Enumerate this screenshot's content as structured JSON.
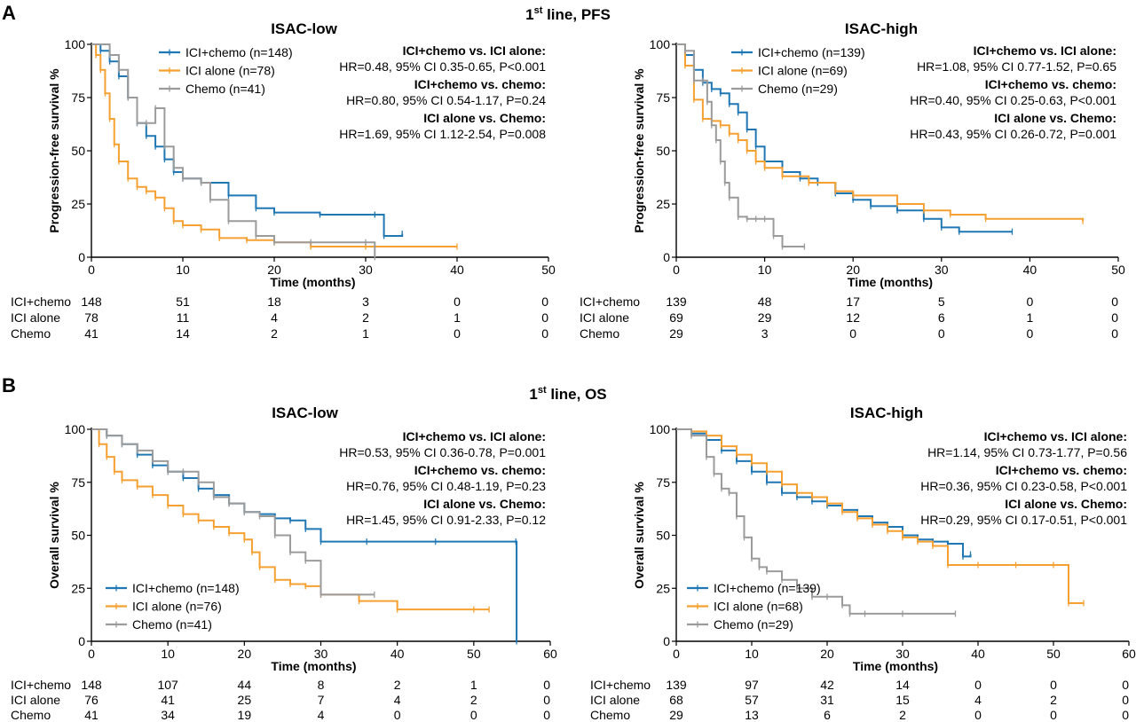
{
  "colors": {
    "ici_chemo": "#1f77b4",
    "ici_alone": "#f5a030",
    "chemo": "#9b9b9b",
    "axis": "#000000"
  },
  "figure": {
    "panel_a": {
      "letter": "A",
      "title_main": "1",
      "title_sup": "st",
      "title_rest": " line, PFS"
    },
    "panel_b": {
      "letter": "B",
      "title_main": "1",
      "title_sup": "st",
      "title_rest": " line, OS"
    }
  },
  "chart_data": [
    {
      "id": "pfs-low",
      "type": "line",
      "title": "ISAC-low",
      "xlabel": "Time (months)",
      "ylabel": "Progression-free survival %",
      "xlim": [
        0,
        50
      ],
      "ylim": [
        0,
        100
      ],
      "xticks": [
        0,
        10,
        20,
        30,
        40,
        50
      ],
      "yticks": [
        0,
        25,
        50,
        75,
        100
      ],
      "grid": false,
      "legend_position": "top-center",
      "legend": [
        "ICI+chemo (n=148)",
        "ICI alone (n=78)",
        "Chemo (n=41)"
      ],
      "stats": [
        {
          "label": "ICI+chemo vs. ICI alone",
          "text": "HR=0.48, 95% CI 0.35-0.65, P<0.001"
        },
        {
          "label": "ICI+chemo vs. chemo",
          "text": "HR=0.80, 95% CI 0.54-1.17, P=0.24"
        },
        {
          "label": "ICI alone vs. Chemo",
          "text": "HR=1.69, 95% CI 1.12-2.54, P=0.008"
        }
      ],
      "series": [
        {
          "name": "ICI+chemo",
          "color_key": "ici_chemo",
          "x": [
            0,
            1,
            2,
            3,
            4,
            5,
            6,
            7,
            8,
            9,
            10,
            12,
            15,
            18,
            20,
            25,
            31,
            32,
            34
          ],
          "y": [
            100,
            97,
            92,
            85,
            75,
            63,
            57,
            52,
            46,
            40,
            37,
            35,
            29,
            23,
            21,
            20,
            20,
            10,
            11
          ]
        },
        {
          "name": "ICI alone",
          "color_key": "ici_alone",
          "x": [
            0,
            0.5,
            1,
            1.5,
            2,
            2.5,
            3,
            4,
            5,
            6,
            7,
            8,
            9,
            10,
            12,
            14,
            17,
            20,
            24,
            30,
            40
          ],
          "y": [
            100,
            95,
            88,
            77,
            65,
            53,
            45,
            37,
            33,
            31,
            28,
            23,
            17,
            15,
            13,
            9,
            8,
            7,
            5,
            5,
            5
          ]
        },
        {
          "name": "Chemo",
          "color_key": "chemo",
          "x": [
            0,
            2,
            3,
            4,
            5,
            6,
            7,
            8,
            9,
            10,
            12,
            13,
            15,
            18,
            20,
            24,
            30,
            31
          ],
          "y": [
            100,
            95,
            88,
            75,
            63,
            63,
            70,
            52,
            42,
            37,
            35,
            27,
            17,
            10,
            7,
            7,
            7,
            0
          ]
        }
      ],
      "risk_table": {
        "rows": [
          {
            "label": "ICI+chemo",
            "values": [
              "148",
              "51",
              "18",
              "3",
              "0",
              "0"
            ]
          },
          {
            "label": "ICI alone",
            "values": [
              "78",
              "11",
              "4",
              "2",
              "1",
              "0"
            ]
          },
          {
            "label": "Chemo",
            "values": [
              "41",
              "14",
              "2",
              "1",
              "0",
              "0"
            ]
          }
        ]
      }
    },
    {
      "id": "pfs-high",
      "type": "line",
      "title": "ISAC-high",
      "xlabel": "Time (months)",
      "ylabel": "Progression-free survival %",
      "xlim": [
        0,
        50
      ],
      "ylim": [
        0,
        100
      ],
      "xticks": [
        0,
        10,
        20,
        30,
        40,
        50
      ],
      "yticks": [
        0,
        25,
        50,
        75,
        100
      ],
      "grid": false,
      "legend_position": "top-center",
      "legend": [
        "ICI+chemo (n=139)",
        "ICI alone (n=69)",
        "Chemo (n=29)"
      ],
      "stats": [
        {
          "label": "ICI+chemo vs. ICI alone",
          "text": "HR=1.08, 95% CI 0.77-1.52, P=0.65"
        },
        {
          "label": "ICI+chemo vs. chemo",
          "text": "HR=0.40, 95% CI 0.25-0.63, P<0.001"
        },
        {
          "label": "ICI alone vs. Chemo",
          "text": "HR=0.43, 95% CI 0.26-0.72, P=0.001"
        }
      ],
      "series": [
        {
          "name": "ICI+chemo",
          "color_key": "ici_chemo",
          "x": [
            0,
            1,
            2,
            3,
            4,
            5,
            6,
            7,
            8,
            9,
            10,
            12,
            14,
            16,
            18,
            20,
            22,
            25,
            28,
            30,
            32,
            38
          ],
          "y": [
            100,
            95,
            88,
            82,
            79,
            77,
            72,
            68,
            60,
            52,
            45,
            40,
            37,
            35,
            30,
            27,
            24,
            22,
            18,
            14,
            12,
            12
          ]
        },
        {
          "name": "ICI alone",
          "color_key": "ici_alone",
          "x": [
            0,
            1,
            2,
            3,
            4,
            5,
            6,
            7,
            8,
            9,
            10,
            12,
            15,
            18,
            20,
            25,
            28,
            31,
            35,
            46
          ],
          "y": [
            100,
            90,
            74,
            65,
            64,
            62,
            58,
            55,
            50,
            45,
            42,
            38,
            35,
            31,
            29,
            25,
            22,
            20,
            18,
            17
          ]
        },
        {
          "name": "Chemo",
          "color_key": "chemo",
          "x": [
            0,
            1,
            2,
            3,
            3.5,
            4,
            4.5,
            5,
            5.5,
            6,
            7,
            8,
            9,
            10,
            11,
            12,
            14.5
          ],
          "y": [
            100,
            97,
            83,
            83,
            73,
            62,
            55,
            45,
            35,
            28,
            19,
            18,
            18,
            18,
            10,
            5,
            5
          ]
        }
      ],
      "risk_table": {
        "rows": [
          {
            "label": "ICI+chemo",
            "values": [
              "139",
              "48",
              "17",
              "5",
              "0",
              "0"
            ]
          },
          {
            "label": "ICI alone",
            "values": [
              "69",
              "29",
              "12",
              "6",
              "1",
              "0"
            ]
          },
          {
            "label": "Chemo",
            "values": [
              "29",
              "3",
              "0",
              "0",
              "0",
              "0"
            ]
          }
        ]
      }
    },
    {
      "id": "os-low",
      "type": "line",
      "title": "ISAC-low",
      "xlabel": "Time (months)",
      "ylabel": "Overall survival %",
      "xlim": [
        0,
        60
      ],
      "ylim": [
        0,
        100
      ],
      "xticks": [
        0,
        10,
        20,
        30,
        40,
        50,
        60
      ],
      "yticks": [
        0,
        25,
        50,
        75,
        100
      ],
      "grid": false,
      "legend_position": "bottom-left",
      "legend": [
        "ICI+chemo (n=148)",
        "ICI alone (n=76)",
        "Chemo (n=41)"
      ],
      "stats": [
        {
          "label": "ICI+chemo vs. ICI alone",
          "text": "HR=0.53, 95% CI 0.36-0.78, P=0.001"
        },
        {
          "label": "ICI+chemo vs. chemo",
          "text": "HR=0.76, 95% CI 0.48-1.19, P=0.23"
        },
        {
          "label": "ICI alone vs. Chemo",
          "text": "HR=1.45, 95% CI 0.91-2.33, P=0.12"
        }
      ],
      "series": [
        {
          "name": "ICI+chemo",
          "color_key": "ici_chemo",
          "x": [
            0,
            2,
            4,
            6,
            8,
            10,
            12,
            14,
            16,
            18,
            20,
            22,
            24,
            26,
            28,
            30,
            36,
            45,
            55.5,
            55.6
          ],
          "y": [
            100,
            97,
            93,
            88,
            83,
            80,
            77,
            72,
            69,
            65,
            61,
            60,
            58,
            57,
            53,
            47,
            47,
            47,
            47,
            0
          ]
        },
        {
          "name": "ICI alone",
          "color_key": "ici_alone",
          "x": [
            0,
            1,
            2,
            3,
            4,
            6,
            8,
            10,
            12,
            14,
            16,
            18,
            20,
            21,
            22,
            24,
            26,
            28,
            30,
            35,
            40,
            50,
            52
          ],
          "y": [
            100,
            93,
            87,
            80,
            76,
            73,
            69,
            64,
            60,
            57,
            54,
            51,
            48,
            42,
            35,
            29,
            27,
            26,
            22,
            19,
            15,
            15,
            15
          ]
        },
        {
          "name": "Chemo",
          "color_key": "chemo",
          "x": [
            0,
            2,
            4,
            6,
            8,
            10,
            12,
            14,
            16,
            18,
            20,
            22,
            24,
            26,
            28,
            30,
            37
          ],
          "y": [
            100,
            97,
            93,
            90,
            85,
            80,
            80,
            75,
            68,
            65,
            61,
            59,
            50,
            42,
            38,
            22,
            22
          ]
        }
      ],
      "risk_table": {
        "rows": [
          {
            "label": "ICI+chemo",
            "values": [
              "148",
              "107",
              "44",
              "8",
              "2",
              "1",
              "0"
            ]
          },
          {
            "label": "ICI alone",
            "values": [
              "76",
              "41",
              "25",
              "7",
              "4",
              "2",
              "0"
            ]
          },
          {
            "label": "Chemo",
            "values": [
              "41",
              "34",
              "19",
              "4",
              "0",
              "0",
              "0"
            ]
          }
        ]
      }
    },
    {
      "id": "os-high",
      "type": "line",
      "title": "ISAC-high",
      "xlabel": "Time (months)",
      "ylabel": "Overall survival %",
      "xlim": [
        0,
        60
      ],
      "ylim": [
        0,
        100
      ],
      "xticks": [
        0,
        10,
        20,
        30,
        40,
        50,
        60
      ],
      "yticks": [
        0,
        25,
        50,
        75,
        100
      ],
      "grid": false,
      "legend_position": "bottom-left",
      "legend": [
        "ICI+chemo (n=139)",
        "ICI alone (n=68)",
        "Chemo (n=29)"
      ],
      "stats": [
        {
          "label": "ICI+chemo vs. ICI alone",
          "text": "HR=1.14, 95% CI 0.73-1.77, P=0.56"
        },
        {
          "label": "ICI+chemo vs. chemo",
          "text": "HR=0.36, 95% CI 0.23-0.58, P<0.001"
        },
        {
          "label": "ICI alone vs. Chemo",
          "text": "HR=0.29, 95% CI 0.17-0.51, P<0.001"
        }
      ],
      "series": [
        {
          "name": "ICI+chemo",
          "color_key": "ici_chemo",
          "x": [
            0,
            2,
            4,
            6,
            8,
            10,
            12,
            14,
            16,
            18,
            20,
            22,
            24,
            26,
            28,
            30,
            32,
            34,
            36,
            38,
            39
          ],
          "y": [
            100,
            98,
            95,
            90,
            85,
            80,
            75,
            70,
            68,
            66,
            64,
            62,
            59,
            56,
            54,
            50,
            48,
            47,
            46,
            40,
            41
          ]
        },
        {
          "name": "ICI alone",
          "color_key": "ici_alone",
          "x": [
            0,
            2,
            4,
            6,
            8,
            10,
            12,
            14,
            16,
            18,
            20,
            22,
            24,
            26,
            28,
            30,
            32,
            34,
            36,
            40,
            45,
            50,
            52,
            54
          ],
          "y": [
            100,
            99,
            97,
            92,
            88,
            84,
            80,
            74,
            70,
            68,
            65,
            61,
            58,
            55,
            52,
            49,
            47,
            45,
            36,
            36,
            36,
            36,
            18,
            18
          ]
        },
        {
          "name": "Chemo",
          "color_key": "chemo",
          "x": [
            0,
            2,
            4,
            5,
            6,
            7,
            8,
            9,
            10,
            11,
            12,
            14,
            16,
            18,
            20,
            22,
            23,
            25,
            30,
            37
          ],
          "y": [
            100,
            97,
            87,
            79,
            72,
            70,
            59,
            49,
            39,
            35,
            33,
            29,
            25,
            21,
            21,
            17,
            13,
            13,
            13,
            13
          ]
        }
      ],
      "risk_table": {
        "rows": [
          {
            "label": "ICI+chemo",
            "values": [
              "139",
              "97",
              "42",
              "14",
              "0",
              "0",
              "0"
            ]
          },
          {
            "label": "ICI alone",
            "values": [
              "68",
              "57",
              "31",
              "15",
              "4",
              "2",
              "0"
            ]
          },
          {
            "label": "Chemo",
            "values": [
              "29",
              "13",
              "6",
              "2",
              "0",
              "0",
              "0"
            ]
          }
        ]
      }
    }
  ]
}
